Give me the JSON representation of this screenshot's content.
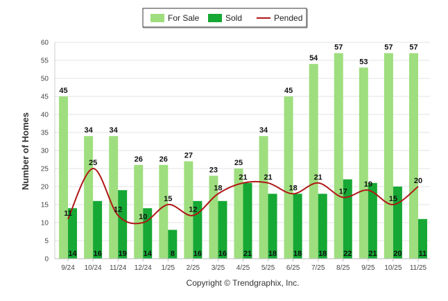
{
  "chart_data": {
    "type": "bar",
    "categories": [
      "9/24",
      "10/24",
      "11/24",
      "12/24",
      "1/25",
      "2/25",
      "3/25",
      "4/25",
      "5/25",
      "6/25",
      "7/25",
      "8/25",
      "9/25",
      "10/25",
      "11/25"
    ],
    "series": [
      {
        "name": "For Sale",
        "kind": "bar",
        "color": "#9ede7e",
        "values": [
          45,
          34,
          34,
          26,
          26,
          27,
          23,
          25,
          34,
          45,
          54,
          57,
          53,
          57,
          57
        ]
      },
      {
        "name": "Sold",
        "kind": "bar",
        "color": "#16a834",
        "values": [
          14,
          16,
          19,
          14,
          8,
          16,
          16,
          21,
          18,
          18,
          18,
          22,
          21,
          20,
          11
        ]
      },
      {
        "name": "Pended",
        "kind": "line",
        "color": "#b01616",
        "values": [
          11,
          25,
          12,
          10,
          15,
          12,
          18,
          21,
          21,
          18,
          21,
          17,
          19,
          15,
          20
        ]
      }
    ],
    "title": "",
    "xlabel": "",
    "ylabel": "Number of Homes",
    "ylim": [
      0,
      60
    ],
    "yticks": [
      0,
      5,
      10,
      15,
      20,
      25,
      30,
      35,
      40,
      45,
      50,
      55,
      60
    ],
    "grid": true,
    "legend_position": "top-center"
  },
  "footer": {
    "copyright": "Copyright © Trendgraphix, Inc."
  }
}
